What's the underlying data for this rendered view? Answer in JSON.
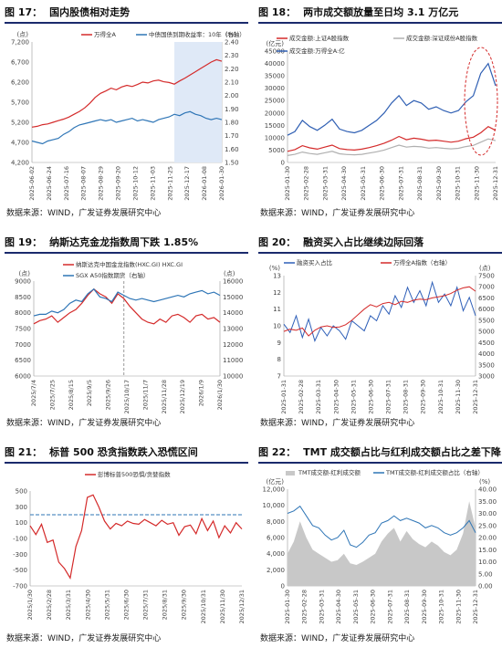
{
  "panels": [
    {
      "id": "p17",
      "title": {
        "number": "图 17：",
        "text": "国内股债相对走势"
      },
      "source": "数据来源：WIND，广发证券发展研究中心",
      "chart_data": {
        "type": "line",
        "x_ticks": [
          "2025-06-02",
          "2025-06-24",
          "2025-07-16",
          "2025-08-07",
          "2025-08-29",
          "2025-09-20",
          "2025-10-12",
          "2025-11-03",
          "2025-11-25",
          "2025-12-17",
          "2026-01-08",
          "2026-01-30"
        ],
        "left_axis": {
          "unit": "(点)",
          "ticks": [
            "4,200",
            "4,700",
            "5,200",
            "5,700",
            "6,200",
            "6,700",
            "7,200"
          ],
          "ylim": [
            4200,
            7200
          ]
        },
        "right_axis": {
          "unit": "(%)",
          "ticks": [
            "1.50",
            "1.60",
            "1.70",
            "1.80",
            "1.90",
            "2.00",
            "2.10",
            "2.20",
            "2.30",
            "2.40"
          ],
          "ylim": [
            1.5,
            2.4
          ]
        },
        "series": [
          {
            "name": "万得全A",
            "axis": "left",
            "color": "#d42a2a",
            "values": [
              5080,
              5100,
              5140,
              5160,
              5200,
              5240,
              5280,
              5330,
              5400,
              5470,
              5560,
              5680,
              5820,
              5920,
              5980,
              6050,
              6010,
              6080,
              6120,
              6090,
              6140,
              6200,
              6180,
              6230,
              6250,
              6210,
              6190,
              6150,
              6230,
              6300,
              6380,
              6460,
              6540,
              6620,
              6700,
              6760,
              6720
            ]
          },
          {
            "name": "中债国债到期收益率：10年（右轴）",
            "axis": "right",
            "color": "#2e75b6",
            "values": [
              1.66,
              1.65,
              1.64,
              1.66,
              1.67,
              1.68,
              1.71,
              1.73,
              1.76,
              1.78,
              1.79,
              1.8,
              1.81,
              1.82,
              1.81,
              1.82,
              1.8,
              1.81,
              1.82,
              1.83,
              1.81,
              1.82,
              1.81,
              1.8,
              1.82,
              1.83,
              1.84,
              1.86,
              1.85,
              1.87,
              1.88,
              1.86,
              1.85,
              1.83,
              1.82,
              1.83,
              1.82
            ]
          }
        ],
        "shaded_region": {
          "from_index": 27,
          "to_index": 36,
          "color": "#dfe9f7"
        }
      }
    },
    {
      "id": "p18",
      "title": {
        "number": "图 18：",
        "text": "两市成交额放量至日均 3.1 万亿元"
      },
      "source": "数据来源：WIND，广发证券发展研究中心",
      "chart_data": {
        "type": "line",
        "x_ticks": [
          "2025-01-30",
          "2025-02-28",
          "2025-03-31",
          "2025-04-30",
          "2025-05-31",
          "2025-06-30",
          "2025-07-31",
          "2025-08-31",
          "2025-09-30",
          "2025-10-31",
          "2025-11-30",
          "2025-12-31"
        ],
        "left_axis": {
          "unit": "(亿元)",
          "ticks": [
            "0",
            "5000",
            "10000",
            "15000",
            "20000",
            "25000",
            "30000",
            "35000",
            "40000",
            "45000"
          ],
          "ylim": [
            0,
            45000
          ]
        },
        "series": [
          {
            "name": "成交金额:上证A股指数",
            "color": "#d42a2a",
            "values": [
              4500,
              5200,
              6800,
              5900,
              5400,
              6200,
              7000,
              5600,
              5200,
              5000,
              5400,
              6000,
              6800,
              7800,
              9000,
              10500,
              9200,
              9800,
              9400,
              8800,
              9000,
              8600,
              8200,
              8600,
              9600,
              10200,
              12000,
              14500,
              13000
            ]
          },
          {
            "name": "成交金额:深证成份A股指数",
            "color": "#b0b0b0",
            "values": [
              2800,
              3300,
              4200,
              3600,
              3300,
              3900,
              4500,
              3500,
              3200,
              3100,
              3300,
              3800,
              4300,
              5000,
              6000,
              7000,
              6200,
              6500,
              6300,
              5800,
              6000,
              5700,
              5500,
              5700,
              6400,
              6900,
              8200,
              9500,
              8800
            ]
          },
          {
            "name": "成交金额:万得全A:亿",
            "color": "#2f5fb3",
            "values": [
              11000,
              12500,
              17000,
              14500,
              13000,
              15000,
              17500,
              13500,
              12500,
              12000,
              13000,
              15000,
              17000,
              20000,
              24000,
              27000,
              23000,
              25000,
              24000,
              21500,
              22500,
              21000,
              20000,
              21000,
              24500,
              27000,
              36000,
              40000,
              31000
            ]
          }
        ],
        "highlight": "dashed red ellipse around latest peak"
      }
    },
    {
      "id": "p19",
      "title": {
        "number": "图 19：",
        "text": "纳斯达克金龙指数周下跌 1.85%"
      },
      "source": "数据来源：WIND，广发证券发展研究中心",
      "chart_data": {
        "type": "line",
        "x_ticks": [
          "2025/7/4",
          "2025/7/25",
          "2025/8/15",
          "2025/9/5",
          "2025/9/26",
          "2025/10/17",
          "2025/11/7",
          "2025/11/28",
          "2025/12/19",
          "2026/1/9",
          "2026/1/30"
        ],
        "left_axis": {
          "unit": "(点)",
          "ticks": [
            "6000",
            "6500",
            "7000",
            "7500",
            "8000",
            "8500",
            "9000"
          ],
          "ylim": [
            6000,
            9000
          ]
        },
        "right_axis": {
          "unit": "(点)",
          "ticks": [
            "10000",
            "11000",
            "12000",
            "13000",
            "14000",
            "15000",
            "16000"
          ],
          "ylim": [
            10000,
            16000
          ]
        },
        "series": [
          {
            "name": "纳斯达克中国金龙指数(HXC.GI) HXC.GI",
            "axis": "left",
            "color": "#d42a2a",
            "values": [
              7650,
              7750,
              7800,
              7900,
              7700,
              7850,
              8000,
              8100,
              8300,
              8550,
              8750,
              8600,
              8500,
              8300,
              8600,
              8450,
              8200,
              8000,
              7800,
              7700,
              7650,
              7800,
              7700,
              7900,
              7950,
              7850,
              7700,
              7900,
              7950,
              7800,
              7850,
              7700
            ]
          },
          {
            "name": "SGX A50指数期货（右轴）",
            "axis": "right",
            "color": "#2e75b6",
            "values": [
              13800,
              13900,
              13900,
              14100,
              14000,
              14200,
              14600,
              14800,
              14700,
              15200,
              15500,
              15000,
              14900,
              14700,
              15300,
              15100,
              14900,
              14800,
              14900,
              14800,
              14700,
              14800,
              14900,
              15000,
              15100,
              15000,
              15200,
              15300,
              15400,
              15200,
              15300,
              15100
            ]
          }
        ],
        "vertical_marker_index": 15
      }
    },
    {
      "id": "p20",
      "title": {
        "number": "图 20：",
        "text": "融资买入占比继续边际回落"
      },
      "source": "数据来源：WIND，广发证券发展研究中心",
      "chart_data": {
        "type": "line",
        "x_ticks": [
          "2025-01-31",
          "2025-02-28",
          "2025-03-31",
          "2025-04-30",
          "2025-05-31",
          "2025-06-30",
          "2025-07-31",
          "2025-08-31",
          "2025-09-30",
          "2025-10-31",
          "2025-11-30",
          "2025-12-31"
        ],
        "left_axis": {
          "unit": "(%)",
          "ticks": [
            "7",
            "8",
            "9",
            "10",
            "11",
            "12",
            "13"
          ],
          "ylim": [
            7,
            13
          ]
        },
        "right_axis": {
          "unit": "(点)",
          "ticks": [
            "3000",
            "3500",
            "4000",
            "4500",
            "5000",
            "5500",
            "6000",
            "6500",
            "7000",
            "7500"
          ],
          "ylim": [
            3000,
            7500
          ]
        },
        "series": [
          {
            "name": "融资买入占比",
            "axis": "left",
            "color": "#2e5fb8",
            "values": [
              10.1,
              9.6,
              10.6,
              9.3,
              10.4,
              9.1,
              9.9,
              9.4,
              10.0,
              9.7,
              9.2,
              10.3,
              10.0,
              9.7,
              10.6,
              10.3,
              11.2,
              10.7,
              11.8,
              11.1,
              12.3,
              11.4,
              12.1,
              11.2,
              12.6,
              11.4,
              11.9,
              11.2,
              12.3,
              10.9,
              11.7,
              10.6
            ]
          },
          {
            "name": "万得全A指数（右轴）",
            "axis": "right",
            "color": "#d42a2a",
            "values": [
              5000,
              5100,
              5050,
              5150,
              4800,
              5050,
              5200,
              5250,
              5180,
              5200,
              5300,
              5500,
              5750,
              6000,
              6200,
              6100,
              6250,
              6300,
              6200,
              6350,
              6300,
              6400,
              6450,
              6420,
              6500,
              6550,
              6600,
              6700,
              6850,
              6950,
              7000,
              6800
            ]
          }
        ]
      }
    },
    {
      "id": "p21",
      "title": {
        "number": "图 21：",
        "text": "标普 500 恐贪指数跌入恐慌区间"
      },
      "source": "数据来源：WIND，广发证券发展研究中心",
      "chart_data": {
        "type": "line",
        "x_ticks": [
          "2025/1/30",
          "2025/2/28",
          "2025/3/31",
          "2025/4/30",
          "2025/5/31",
          "2025/6/30",
          "2025/7/31",
          "2025/8/31",
          "2025/9/30",
          "2025/10/31",
          "2025/11/30",
          "2025/12/31"
        ],
        "left_axis": {
          "unit": "",
          "ticks": [
            "-700",
            "-500",
            "-300",
            "-100",
            "100",
            "300",
            "500"
          ],
          "ylim": [
            -700,
            500
          ]
        },
        "series": [
          {
            "name": "彭博标普500恐惧/贪婪指数",
            "color": "#d42a2a",
            "values": [
              60,
              -50,
              80,
              -150,
              -120,
              -400,
              -480,
              -600,
              -200,
              0,
              420,
              450,
              300,
              120,
              20,
              90,
              60,
              120,
              90,
              80,
              140,
              100,
              60,
              130,
              80,
              100,
              -60,
              50,
              70,
              -40,
              150,
              0,
              120,
              -90,
              60,
              -30,
              100,
              20
            ]
          }
        ],
        "reference_line": {
          "value": 200,
          "style": "dashed",
          "color": "#2e75b6"
        }
      }
    },
    {
      "id": "p22",
      "title": {
        "number": "图 22：",
        "text": "TMT 成交额占比与红利成交额占比之差下降"
      },
      "source": "数据来源：WIND，广发证券发展研究中心",
      "chart_data": {
        "type": "area",
        "x_ticks": [
          "2025-01-30",
          "2025-02-28",
          "2025-03-31",
          "2025-04-30",
          "2025-05-31",
          "2025-06-30",
          "2025-07-31",
          "2025-08-31",
          "2025-09-30",
          "2025-10-31",
          "2025-11-30",
          "2025-12-31"
        ],
        "left_axis": {
          "unit": "(亿元)",
          "ticks": [
            "0",
            "2,000",
            "4,000",
            "6,000",
            "8,000",
            "10,000",
            "12,000"
          ],
          "ylim": [
            0,
            12000
          ]
        },
        "right_axis": {
          "unit": "(%)",
          "ticks": [
            "0.00",
            "5.00",
            "10.00",
            "15.00",
            "20.00",
            "25.00",
            "30.00",
            "35.00",
            "40.00"
          ],
          "ylim": [
            0,
            40
          ]
        },
        "series": [
          {
            "name": "TMT成交额-红利成交额",
            "axis": "left",
            "color": "#c8c8c8",
            "values": [
              4000,
              5500,
              8000,
              6000,
              4500,
              4000,
              3500,
              3000,
              3200,
              4000,
              2800,
              2600,
              3000,
              3500,
              4000,
              5500,
              6500,
              7200,
              5500,
              6800,
              5800,
              5200,
              4800,
              5500,
              5000,
              4200,
              3800,
              4500,
              6500,
              10500,
              7200
            ]
          },
          {
            "name": "TMT成交额-红利成交额占比（右轴）",
            "axis": "right",
            "color": "#2e75b6",
            "values": [
              30,
              31,
              33,
              29,
              25,
              24,
              21,
              19,
              20,
              23,
              17,
              16,
              18,
              21,
              22,
              26,
              27,
              29,
              27,
              28,
              27,
              26,
              24,
              25,
              24,
              22,
              21,
              22,
              24,
              27,
              22
            ]
          }
        ]
      }
    }
  ]
}
